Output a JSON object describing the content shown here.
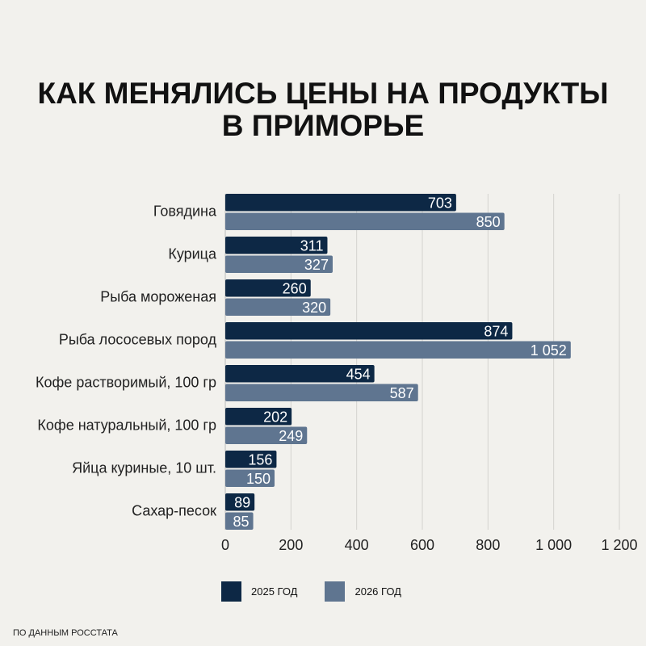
{
  "chart_data": {
    "type": "bar",
    "orientation": "horizontal",
    "title": "КАК МЕНЯЛИСЬ ЦЕНЫ НА ПРОДУКТЫ В ПРИМОРЬЕ",
    "categories": [
      "Говядина",
      "Курица",
      "Рыба мороженая",
      "Рыба лососевых пород",
      "Кофе растворимый, 100 гр",
      "Кофе натуральный, 100 гр",
      "Яйца куриные, 10 шт.",
      "Сахар-песок"
    ],
    "series": [
      {
        "name": "2025 ГОД",
        "color": "#0d2845",
        "values": [
          703,
          311,
          260,
          874,
          454,
          202,
          156,
          89
        ],
        "labels": [
          "703",
          "311",
          "260",
          "874",
          "454",
          "202",
          "156",
          "89"
        ]
      },
      {
        "name": "2026 ГОД",
        "color": "#5f7590",
        "values": [
          850,
          327,
          320,
          1052,
          587,
          249,
          150,
          85
        ],
        "labels": [
          "850",
          "327",
          "320",
          "1 052",
          "587",
          "249",
          "150",
          "85"
        ]
      }
    ],
    "xlim": [
      0,
      1200
    ],
    "ticks": [
      0,
      200,
      400,
      600,
      800,
      1000,
      1200
    ],
    "tick_labels": [
      "0",
      "200",
      "400",
      "600",
      "800",
      "1 000",
      "1 200"
    ],
    "grid": true,
    "legend": "bottom"
  },
  "title_lines": [
    "КАК МЕНЯЛИСЬ ЦЕНЫ НА ПРОДУКТЫ",
    "В ПРИМОРЬЕ"
  ],
  "source": "ПО ДАННЫМ РОССТАТА"
}
